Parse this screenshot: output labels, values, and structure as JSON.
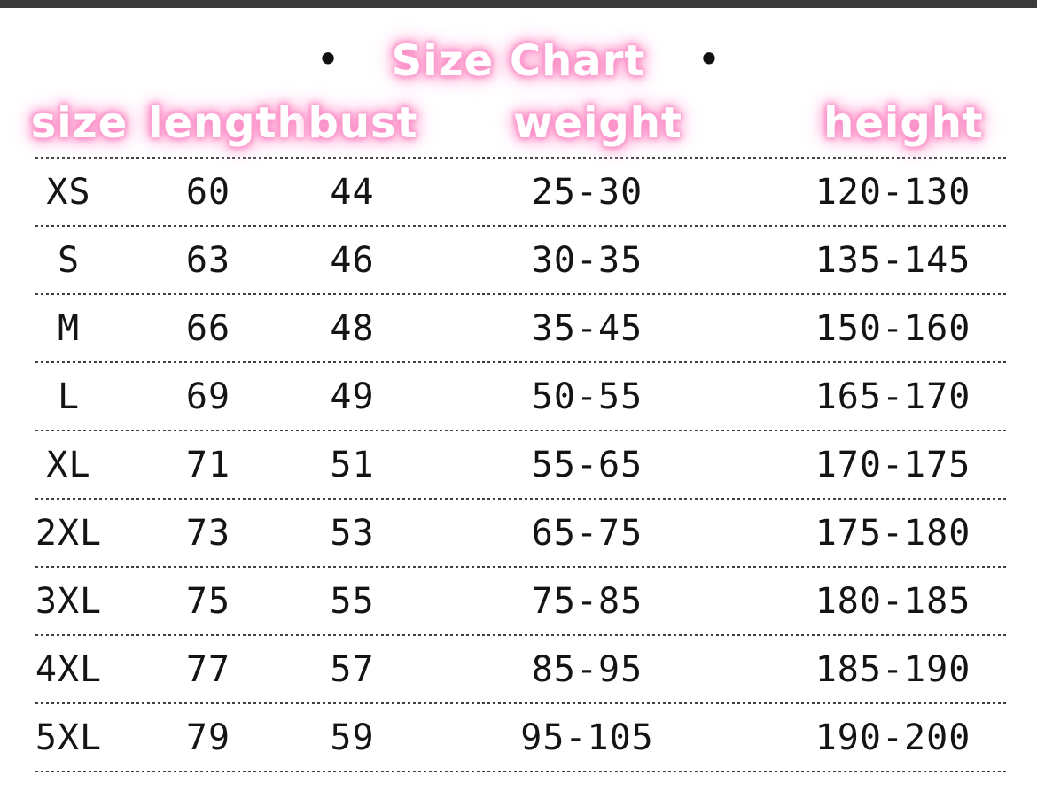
{
  "page": {
    "background_color": "#ffffff",
    "top_bar_color": "#3b3b3b",
    "accent_pink": "#fa86c3",
    "text_color": "#141414",
    "divider_color": "#3f3f3f",
    "divider_style": "dashed"
  },
  "title": {
    "text": "Size Chart",
    "left_bullet": "•",
    "right_bullet": "•"
  },
  "chart_data": {
    "type": "table",
    "title": "Size Chart",
    "columns": [
      "size",
      "length",
      "bust",
      "weight",
      "height"
    ],
    "rows": [
      [
        "XS",
        "60",
        "44",
        "25-30",
        "120-130"
      ],
      [
        "S",
        "63",
        "46",
        "30-35",
        "135-145"
      ],
      [
        "M",
        "66",
        "48",
        "35-45",
        "150-160"
      ],
      [
        "L",
        "69",
        "49",
        "50-55",
        "165-170"
      ],
      [
        "XL",
        "71",
        "51",
        "55-65",
        "170-175"
      ],
      [
        "2XL",
        "73",
        "53",
        "65-75",
        "175-180"
      ],
      [
        "3XL",
        "75",
        "55",
        "75-85",
        "180-185"
      ],
      [
        "4XL",
        "77",
        "57",
        "85-95",
        "185-190"
      ],
      [
        "5XL",
        "79",
        "59",
        "95-105",
        "190-200"
      ]
    ]
  }
}
